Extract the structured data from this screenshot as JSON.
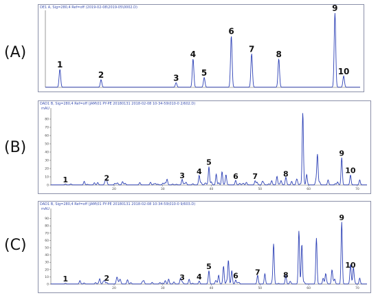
{
  "chart_data": [
    {
      "type": "line",
      "panel_label": "(A)",
      "header": "DE1 A, Sig=280,4 Ref=off (2019-02-08\\2019-05\\0002.D)",
      "unit": "",
      "x_range": [
        7,
        72
      ],
      "y_range": [
        0,
        100
      ],
      "x_ticks": [],
      "y_ticks": [],
      "peaks": [
        {
          "label": "1",
          "x": 10.0,
          "y": 24
        },
        {
          "label": "2",
          "x": 18.5,
          "y": 10
        },
        {
          "label": "3",
          "x": 34.0,
          "y": 6
        },
        {
          "label": "4",
          "x": 37.5,
          "y": 38
        },
        {
          "label": "5",
          "x": 39.8,
          "y": 13
        },
        {
          "label": "6",
          "x": 45.4,
          "y": 69
        },
        {
          "label": "7",
          "x": 49.6,
          "y": 45
        },
        {
          "label": "8",
          "x": 55.2,
          "y": 38
        },
        {
          "label": "9",
          "x": 66.8,
          "y": 100
        },
        {
          "label": "10",
          "x": 68.6,
          "y": 15
        }
      ]
    },
    {
      "type": "line",
      "panel_label": "(B)",
      "header": "DAD1 B, Sig=280,4 Ref=off (JAM\\01 PY-PE 20180131 2018-02-08 10-34-59\\010-0 2/602.D)",
      "unit": "mAU",
      "x_range": [
        7,
        72
      ],
      "y_range": [
        0,
        90
      ],
      "x_ticks": [
        20,
        30,
        40,
        50,
        60,
        70
      ],
      "y_ticks": [
        0,
        10,
        20,
        30,
        40,
        50,
        60,
        70,
        80
      ],
      "peaks": [
        {
          "label": "1",
          "x": 10.0,
          "y": 1
        },
        {
          "label": "2",
          "x": 18.5,
          "y": 3
        },
        {
          "label": "3",
          "x": 34.0,
          "y": 6
        },
        {
          "label": "4",
          "x": 37.5,
          "y": 11
        },
        {
          "label": "5",
          "x": 39.5,
          "y": 22
        },
        {
          "label": "6",
          "x": 45.0,
          "y": 5
        },
        {
          "label": "7",
          "x": 49.0,
          "y": 5
        },
        {
          "label": "8",
          "x": 55.3,
          "y": 8
        },
        {
          "label": "9",
          "x": 66.8,
          "y": 33
        },
        {
          "label": "10",
          "x": 68.6,
          "y": 12
        }
      ],
      "other_peaks": [
        {
          "x": 41.0,
          "y": 13
        },
        {
          "x": 42.2,
          "y": 16
        },
        {
          "x": 43.0,
          "y": 12
        },
        {
          "x": 50.5,
          "y": 4
        },
        {
          "x": 53.5,
          "y": 6
        },
        {
          "x": 57.5,
          "y": 5
        },
        {
          "x": 58.8,
          "y": 87
        },
        {
          "x": 59.6,
          "y": 12
        },
        {
          "x": 61.8,
          "y": 34
        },
        {
          "x": 64.0,
          "y": 6
        },
        {
          "x": 70.5,
          "y": 6
        }
      ]
    },
    {
      "type": "line",
      "panel_label": "(C)",
      "header": "DAD1 B, Sig=280,4 Ref=off (JAM\\01 PY-PE 20180131 2018-02-08 10-34-59\\010-0 9/603.D)",
      "unit": "mAU",
      "x_range": [
        7,
        72
      ],
      "y_range": [
        0,
        100
      ],
      "x_ticks": [
        20,
        30,
        40,
        50,
        60,
        70
      ],
      "y_ticks": [
        0,
        10,
        20,
        30,
        40,
        50,
        60,
        70,
        80,
        90
      ],
      "peaks": [
        {
          "label": "1",
          "x": 10.0,
          "y": 1
        },
        {
          "label": "2",
          "x": 18.5,
          "y": 2
        },
        {
          "label": "3",
          "x": 34.0,
          "y": 3
        },
        {
          "label": "4",
          "x": 37.5,
          "y": 4
        },
        {
          "label": "5",
          "x": 39.5,
          "y": 18
        },
        {
          "label": "6",
          "x": 45.0,
          "y": 5
        },
        {
          "label": "7",
          "x": 49.5,
          "y": 10
        },
        {
          "label": "8",
          "x": 55.3,
          "y": 6
        },
        {
          "label": "9",
          "x": 66.8,
          "y": 85
        },
        {
          "label": "10",
          "x": 68.6,
          "y": 20
        }
      ],
      "other_peaks": [
        {
          "x": 41.5,
          "y": 12
        },
        {
          "x": 42.5,
          "y": 22
        },
        {
          "x": 43.5,
          "y": 32
        },
        {
          "x": 44.2,
          "y": 18
        },
        {
          "x": 51.0,
          "y": 14
        },
        {
          "x": 52.8,
          "y": 55
        },
        {
          "x": 58.0,
          "y": 73
        },
        {
          "x": 58.6,
          "y": 50
        },
        {
          "x": 61.6,
          "y": 63
        },
        {
          "x": 63.5,
          "y": 14
        },
        {
          "x": 64.8,
          "y": 18
        },
        {
          "x": 69.2,
          "y": 22
        },
        {
          "x": 70.5,
          "y": 8
        }
      ]
    }
  ]
}
